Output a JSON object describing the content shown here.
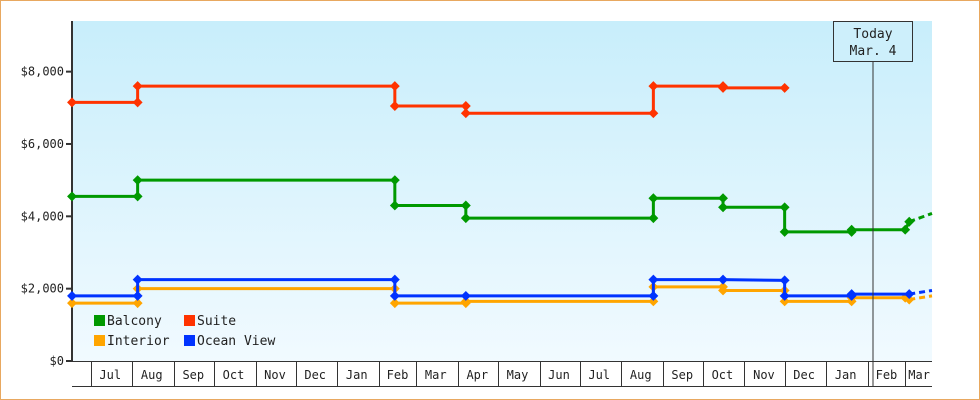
{
  "chart_data": {
    "type": "line",
    "step": true,
    "title": "",
    "xlabel": "",
    "ylabel": "",
    "ylim": [
      0,
      9400
    ],
    "yticks": [
      0,
      2000,
      4000,
      6000,
      8000
    ],
    "ytick_labels": [
      "$0",
      "$2,000",
      "$4,000",
      "$6,000",
      "$8,000"
    ],
    "xlim": [
      "2021-06-17",
      "2023-03-21"
    ],
    "month_labels": [
      "Jul",
      "Aug",
      "Sep",
      "Oct",
      "Nov",
      "Dec",
      "Jan",
      "Feb",
      "Mar",
      "Apr",
      "May",
      "Jun",
      "Jul",
      "Aug",
      "Sep",
      "Oct",
      "Nov",
      "Dec",
      "Jan",
      "Feb",
      "Mar"
    ],
    "grid": false,
    "legend": {
      "placement": "bottom-left",
      "entries": [
        "Balcony",
        "Suite",
        "Interior",
        "Ocean View"
      ]
    },
    "today": {
      "label": "Today",
      "date_label": "Mar. 4",
      "date": "2023-03-04"
    },
    "series": [
      {
        "name": "Suite",
        "color": "#ff3300",
        "points": [
          [
            "2021-06-17",
            7150
          ],
          [
            "2021-08-05",
            7150
          ],
          [
            "2021-08-05",
            7600
          ],
          [
            "2022-02-13",
            7600
          ],
          [
            "2022-02-13",
            7050
          ],
          [
            "2022-04-07",
            7050
          ],
          [
            "2022-04-07",
            6850
          ],
          [
            "2022-08-25",
            6850
          ],
          [
            "2022-08-25",
            7600
          ],
          [
            "2022-10-16",
            7600
          ],
          [
            "2022-10-16",
            7550
          ],
          [
            "2022-12-01",
            7550
          ]
        ],
        "projection": []
      },
      {
        "name": "Balcony",
        "color": "#009900",
        "points": [
          [
            "2021-06-17",
            4550
          ],
          [
            "2021-08-05",
            4550
          ],
          [
            "2021-08-05",
            5000
          ],
          [
            "2022-02-13",
            5000
          ],
          [
            "2022-02-13",
            4300
          ],
          [
            "2022-04-07",
            4300
          ],
          [
            "2022-04-07",
            3950
          ],
          [
            "2022-08-25",
            3950
          ],
          [
            "2022-08-25",
            4500
          ],
          [
            "2022-10-16",
            4500
          ],
          [
            "2022-10-16",
            4250
          ],
          [
            "2022-12-01",
            4250
          ],
          [
            "2022-12-01",
            3570
          ],
          [
            "2023-01-20",
            3570
          ],
          [
            "2023-01-20",
            3630
          ],
          [
            "2023-03-01",
            3630
          ],
          [
            "2023-03-04",
            3850
          ]
        ],
        "projection": [
          [
            "2023-03-04",
            3850
          ],
          [
            "2023-03-21",
            4080
          ]
        ]
      },
      {
        "name": "Interior",
        "color": "#ffa500",
        "points": [
          [
            "2021-06-17",
            1600
          ],
          [
            "2021-08-05",
            1600
          ],
          [
            "2021-08-05",
            2000
          ],
          [
            "2022-02-13",
            2000
          ],
          [
            "2022-02-13",
            1600
          ],
          [
            "2022-04-07",
            1600
          ],
          [
            "2022-04-07",
            1650
          ],
          [
            "2022-08-25",
            1650
          ],
          [
            "2022-08-25",
            2050
          ],
          [
            "2022-10-16",
            2050
          ],
          [
            "2022-10-16",
            1950
          ],
          [
            "2022-12-01",
            1950
          ],
          [
            "2022-12-01",
            1650
          ],
          [
            "2023-01-20",
            1650
          ],
          [
            "2023-01-20",
            1750
          ],
          [
            "2023-03-01",
            1750
          ],
          [
            "2023-03-04",
            1700
          ]
        ],
        "projection": [
          [
            "2023-03-04",
            1700
          ],
          [
            "2023-03-21",
            1800
          ]
        ]
      },
      {
        "name": "Ocean View",
        "color": "#0033ff",
        "points": [
          [
            "2021-06-17",
            1800
          ],
          [
            "2021-08-05",
            1800
          ],
          [
            "2021-08-05",
            2250
          ],
          [
            "2022-02-13",
            2250
          ],
          [
            "2022-02-13",
            1800
          ],
          [
            "2022-04-07",
            1800
          ],
          [
            "2022-08-25",
            1800
          ],
          [
            "2022-08-25",
            2250
          ],
          [
            "2022-10-16",
            2250
          ],
          [
            "2022-12-01",
            2230
          ],
          [
            "2022-12-01",
            1800
          ],
          [
            "2023-01-20",
            1800
          ],
          [
            "2023-01-20",
            1850
          ],
          [
            "2023-03-04",
            1850
          ]
        ],
        "projection": [
          [
            "2023-03-04",
            1850
          ],
          [
            "2023-03-21",
            1950
          ]
        ]
      }
    ]
  }
}
